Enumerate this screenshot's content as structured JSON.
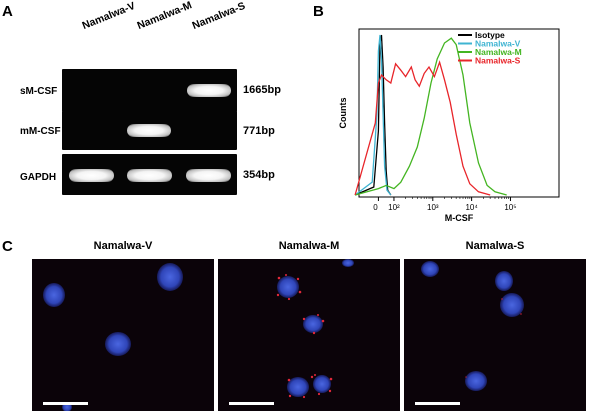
{
  "panel_a": {
    "letter": "A",
    "lanes": [
      "Namalwa-V",
      "Namalwa-M",
      "Namalwa-S"
    ],
    "rows": [
      {
        "label": "sM-CSF",
        "size": "1665bp",
        "bands": [
          false,
          false,
          true
        ]
      },
      {
        "label": "mM-CSF",
        "size": "771bp",
        "bands": [
          false,
          true,
          false
        ]
      },
      {
        "label": "GAPDH",
        "size": "354bp",
        "bands": [
          true,
          true,
          true
        ]
      }
    ]
  },
  "panel_b": {
    "letter": "B",
    "chart_data": {
      "type": "line",
      "title": "",
      "xlabel": "M-CSF",
      "ylabel": "Counts",
      "x_scale": "log",
      "x_ticks": [
        "0",
        "10²",
        "10³",
        "10⁴",
        "10⁵"
      ],
      "legend_position": "top-right",
      "series": [
        {
          "name": "Isotype",
          "color": "#000000",
          "points": [
            [
              -150,
              0
            ],
            [
              -30,
              5
            ],
            [
              0,
              40
            ],
            [
              10,
              95
            ],
            [
              20,
              100
            ],
            [
              30,
              80
            ],
            [
              40,
              45
            ],
            [
              50,
              15
            ],
            [
              60,
              3
            ],
            [
              80,
              0
            ]
          ]
        },
        {
          "name": "Namalwa-V",
          "color": "#3fb4d2",
          "points": [
            [
              -150,
              0
            ],
            [
              -40,
              8
            ],
            [
              -10,
              50
            ],
            [
              0,
              90
            ],
            [
              10,
              100
            ],
            [
              20,
              85
            ],
            [
              30,
              50
            ],
            [
              40,
              18
            ],
            [
              55,
              3
            ],
            [
              80,
              0
            ]
          ]
        },
        {
          "name": "Namalwa-M",
          "color": "#44b522",
          "points": [
            [
              -150,
              0
            ],
            [
              0,
              4
            ],
            [
              50,
              6
            ],
            [
              100,
              4
            ],
            [
              150,
              8
            ],
            [
              250,
              18
            ],
            [
              400,
              30
            ],
            [
              600,
              48
            ],
            [
              900,
              70
            ],
            [
              1300,
              85
            ],
            [
              2000,
              95
            ],
            [
              3000,
              98
            ],
            [
              4000,
              94
            ],
            [
              6000,
              75
            ],
            [
              9000,
              45
            ],
            [
              15000,
              20
            ],
            [
              25000,
              6
            ],
            [
              40000,
              2
            ],
            [
              80000,
              0
            ]
          ]
        },
        {
          "name": "Namalwa-S",
          "color": "#e8252a",
          "points": [
            [
              -150,
              0
            ],
            [
              -20,
              45
            ],
            [
              0,
              70
            ],
            [
              20,
              75
            ],
            [
              50,
              72
            ],
            [
              80,
              70
            ],
            [
              110,
              82
            ],
            [
              150,
              78
            ],
            [
              200,
              74
            ],
            [
              280,
              80
            ],
            [
              350,
              72
            ],
            [
              450,
              68
            ],
            [
              600,
              76
            ],
            [
              800,
              80
            ],
            [
              1100,
              74
            ],
            [
              1500,
              83
            ],
            [
              2000,
              72
            ],
            [
              2800,
              58
            ],
            [
              4000,
              38
            ],
            [
              6000,
              18
            ],
            [
              9000,
              7
            ],
            [
              15000,
              2
            ],
            [
              30000,
              0
            ]
          ]
        }
      ]
    }
  },
  "panel_c": {
    "letter": "C",
    "images": [
      {
        "title": "Namalwa-V"
      },
      {
        "title": "Namalwa-M"
      },
      {
        "title": "Namalwa-S"
      }
    ]
  }
}
